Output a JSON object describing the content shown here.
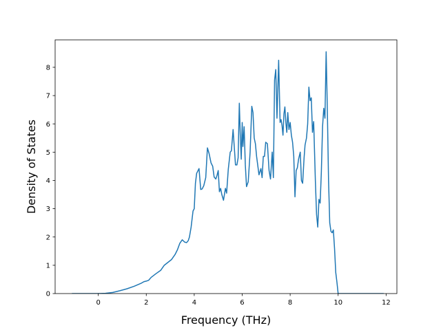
{
  "chart_data": {
    "type": "line",
    "title": "",
    "xlabel": "Frequency (THz)",
    "ylabel": "Density of States",
    "xlim": [
      -1.8,
      12.45
    ],
    "ylim": [
      0,
      8.97
    ],
    "xticks": [
      0,
      2,
      4,
      6,
      8,
      10,
      12
    ],
    "yticks": [
      0,
      1,
      2,
      3,
      4,
      5,
      6,
      7,
      8
    ],
    "grid": false,
    "legend": "none",
    "line_color": "#1f77b4",
    "series": [
      {
        "x": [
          -1.1,
          -0.5,
          0,
          0.3,
          0.6,
          0.9,
          1.2,
          1.5,
          1.8,
          1.9,
          2.0,
          2.1,
          2.2,
          2.4,
          2.6,
          2.75,
          2.9,
          3.05,
          3.2,
          3.3,
          3.4,
          3.5,
          3.6,
          3.68,
          3.75,
          3.8,
          3.87,
          3.95,
          4.0,
          4.05,
          4.1,
          4.2,
          4.27,
          4.33,
          4.4,
          4.48,
          4.55,
          4.62,
          4.7,
          4.77,
          4.83,
          4.9,
          4.95,
          5.0,
          5.05,
          5.1,
          5.15,
          5.22,
          5.3,
          5.35,
          5.42,
          5.5,
          5.55,
          5.62,
          5.68,
          5.72,
          5.78,
          5.83,
          5.88,
          5.92,
          5.96,
          6.0,
          6.03,
          6.08,
          6.13,
          6.18,
          6.25,
          6.33,
          6.4,
          6.45,
          6.5,
          6.55,
          6.6,
          6.7,
          6.78,
          6.83,
          6.88,
          6.93,
          6.98,
          7.05,
          7.12,
          7.18,
          7.25,
          7.3,
          7.35,
          7.4,
          7.45,
          7.52,
          7.58,
          7.62,
          7.66,
          7.7,
          7.74,
          7.78,
          7.82,
          7.86,
          7.9,
          7.95,
          8.0,
          8.05,
          8.1,
          8.15,
          8.2,
          8.25,
          8.3,
          8.35,
          8.42,
          8.47,
          8.52,
          8.58,
          8.62,
          8.68,
          8.73,
          8.78,
          8.83,
          8.88,
          8.93,
          8.98,
          9.05,
          9.1,
          9.15,
          9.2,
          9.25,
          9.3,
          9.35,
          9.4,
          9.45,
          9.5,
          9.55,
          9.6,
          9.65,
          9.7,
          9.75,
          9.8,
          9.85,
          9.9,
          9.95,
          10.0,
          10.03,
          10.08,
          10.13,
          10.2,
          10.28,
          10.35,
          10.42,
          10.5,
          10.55,
          10.6,
          10.7,
          10.8,
          11.0,
          11.5,
          11.9
        ],
        "y": [
          0,
          0,
          0,
          0.01,
          0.04,
          0.1,
          0.17,
          0.26,
          0.37,
          0.42,
          0.44,
          0.47,
          0.57,
          0.7,
          0.82,
          1.0,
          1.1,
          1.2,
          1.38,
          1.55,
          1.78,
          1.9,
          1.82,
          1.8,
          1.87,
          2.0,
          2.35,
          2.92,
          3.0,
          3.9,
          4.25,
          4.42,
          3.68,
          3.7,
          3.82,
          4.1,
          5.15,
          4.95,
          4.62,
          4.5,
          4.12,
          4.05,
          4.18,
          4.35,
          3.6,
          3.72,
          3.5,
          3.3,
          3.72,
          3.55,
          4.4,
          5.0,
          5.05,
          5.8,
          5.05,
          4.55,
          4.55,
          4.8,
          6.73,
          5.6,
          4.75,
          6.05,
          5.2,
          5.9,
          4.55,
          3.78,
          3.95,
          5.0,
          6.62,
          6.4,
          5.5,
          5.3,
          4.85,
          4.2,
          4.42,
          4.1,
          4.85,
          4.85,
          5.35,
          5.3,
          4.35,
          4.05,
          5.0,
          4.1,
          7.55,
          7.92,
          6.2,
          8.25,
          6.05,
          6.15,
          5.95,
          5.6,
          6.35,
          6.6,
          6.05,
          5.7,
          6.4,
          5.8,
          6.05,
          5.6,
          5.35,
          4.85,
          3.42,
          4.35,
          4.45,
          4.75,
          5.0,
          4.0,
          3.9,
          4.8,
          5.25,
          5.5,
          6.0,
          7.3,
          6.82,
          6.92,
          5.7,
          6.08,
          4.0,
          2.8,
          2.35,
          3.33,
          3.2,
          4.3,
          5.9,
          6.55,
          6.2,
          8.55,
          6.5,
          4.0,
          2.5,
          2.2,
          2.15,
          2.25,
          1.6,
          0.75,
          0.4,
          0,
          0,
          0,
          0,
          0,
          0,
          0,
          0,
          0,
          0,
          0,
          0,
          0,
          0,
          0,
          0
        ]
      }
    ]
  }
}
